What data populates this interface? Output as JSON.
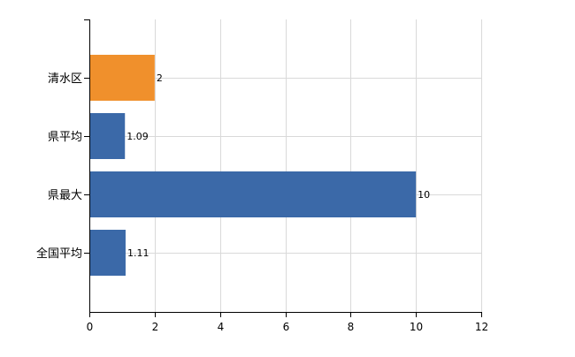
{
  "chart_data": {
    "type": "bar",
    "orientation": "horizontal",
    "title": "",
    "xlabel": "",
    "ylabel": "",
    "categories": [
      "清水区",
      "県平均",
      "県最大",
      "全国平均"
    ],
    "values": [
      2,
      1.09,
      10,
      1.11
    ],
    "data_labels": [
      "2",
      "1.09",
      "10",
      "1.11"
    ],
    "bar_colors": [
      "#f0902c",
      "#3b69a8",
      "#3b69a8",
      "#3b69a8"
    ],
    "xlim": [
      0,
      12
    ],
    "x_ticks": [
      0,
      2,
      4,
      6,
      8,
      10,
      12
    ],
    "grid": true,
    "legend": "none"
  }
}
